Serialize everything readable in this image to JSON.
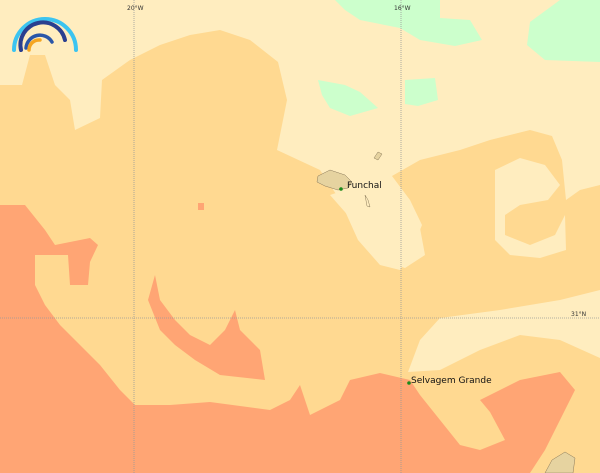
{
  "map": {
    "colors": {
      "light": "#FFEDBF",
      "medium": "#FFD991",
      "high": "#FFA574",
      "low": "#CCFFCC",
      "land": "#E6D3A0",
      "grid": "#999999",
      "marker": "#1a8a1a"
    },
    "graticule": {
      "lon_labels": [
        "20°W",
        "16°W"
      ],
      "lat_labels": [
        "31°N"
      ]
    },
    "places": [
      {
        "name": "Funchal"
      },
      {
        "name": "Selvagem Grande"
      }
    ],
    "logo": {
      "icon": "rainbow-arc-logo"
    }
  }
}
